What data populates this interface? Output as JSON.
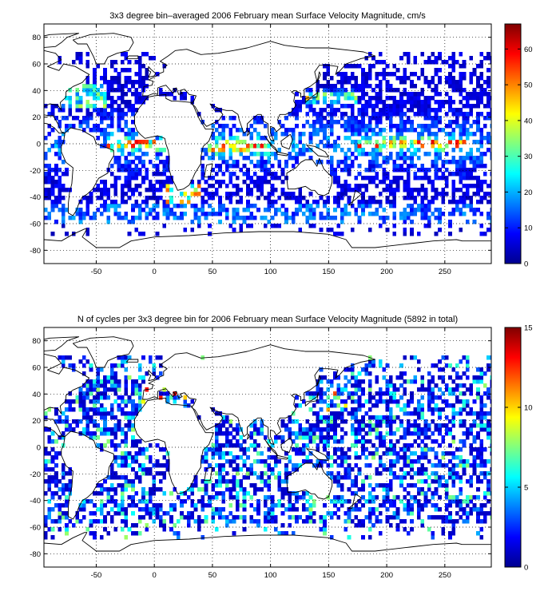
{
  "chart_data": [
    {
      "type": "heatmap",
      "title": "3x3 degree bin–averaged 2006 February mean Surface Velocity Magnitude, cm/s",
      "xlim": [
        -95,
        290
      ],
      "ylim": [
        -90,
        90
      ],
      "xticks": [
        -50,
        0,
        50,
        100,
        150,
        200,
        250
      ],
      "yticks": [
        -80,
        -60,
        -40,
        -20,
        0,
        20,
        40,
        60,
        80
      ],
      "grid": true,
      "colorbar": {
        "colormap": "jet",
        "range": [
          0,
          67
        ],
        "ticks": [
          0,
          10,
          20,
          30,
          40,
          50,
          60
        ]
      },
      "bin_size_deg": 3,
      "seed": 11
    },
    {
      "type": "heatmap",
      "title": "N of cycles per 3x3 degree bin for 2006 February mean Surface Velocity Magnitude (5892 in total)",
      "xlim": [
        -95,
        290
      ],
      "ylim": [
        -90,
        90
      ],
      "xticks": [
        -50,
        0,
        50,
        100,
        150,
        200,
        250
      ],
      "yticks": [
        -80,
        -60,
        -40,
        -20,
        0,
        20,
        40,
        60,
        80
      ],
      "grid": true,
      "colorbar": {
        "colormap": "jet",
        "range": [
          0,
          15
        ],
        "ticks": [
          0,
          5,
          10,
          15
        ]
      },
      "bin_size_deg": 3,
      "seed": 29
    }
  ]
}
